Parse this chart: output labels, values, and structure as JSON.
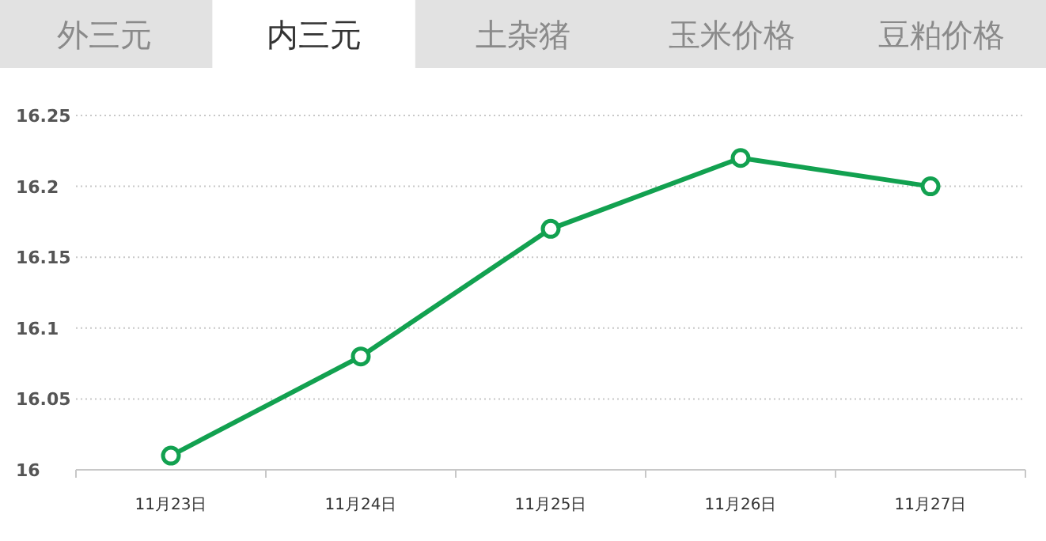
{
  "chart_data": {
    "type": "line",
    "title": "内三元",
    "annotations": [
      "外三元",
      "土杂猪",
      "玉米价格",
      "豆粕价格"
    ],
    "categories": [
      "11月23日",
      "11月24日",
      "11月25日",
      "11月26日",
      "11月27日"
    ],
    "series": [
      {
        "color": "#12a150",
        "values": [
          16.01,
          16.08,
          16.17,
          16.22,
          16.2
        ]
      }
    ],
    "ylim": [
      16,
      16.25
    ],
    "yticks": [
      16,
      16.05,
      16.1,
      16.15,
      16.2,
      16.25
    ],
    "grid": "y",
    "marker": "circle",
    "line_style": "solid"
  }
}
